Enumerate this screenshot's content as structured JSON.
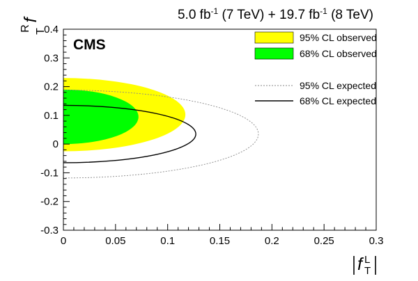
{
  "chart_data": {
    "type": "contour",
    "header": {
      "lumi1": "5.0 fb",
      "sup1": "-1",
      "energy1": " (7 TeV) + 19.7 fb",
      "sup2": "-1",
      "energy2": " (8 TeV)"
    },
    "experiment_label": "CMS",
    "xlabel": {
      "base": "f",
      "sup": "L",
      "sub": "T"
    },
    "ylabel": {
      "base": "f",
      "sup": "R",
      "sub": "T"
    },
    "xlim": [
      0,
      0.3
    ],
    "ylim": [
      -0.3,
      0.4
    ],
    "x_ticks": [
      {
        "value": 0,
        "label": "0"
      },
      {
        "value": 0.05,
        "label": "0.05"
      },
      {
        "value": 0.1,
        "label": "0.1"
      },
      {
        "value": 0.15,
        "label": "0.15"
      },
      {
        "value": 0.2,
        "label": "0.2"
      },
      {
        "value": 0.25,
        "label": "0.25"
      },
      {
        "value": 0.3,
        "label": "0.3"
      }
    ],
    "y_ticks": [
      {
        "value": -0.3,
        "label": "-0.3"
      },
      {
        "value": -0.2,
        "label": "-0.2"
      },
      {
        "value": -0.1,
        "label": "-0.1"
      },
      {
        "value": 0,
        "label": "0"
      },
      {
        "value": 0.1,
        "label": "0.1"
      },
      {
        "value": 0.2,
        "label": "0.2"
      },
      {
        "value": 0.3,
        "label": "0.3"
      },
      {
        "value": 0.4,
        "label": "0.4"
      }
    ],
    "legend_position": "top-right",
    "series": [
      {
        "name": "95% CL observed",
        "style": "filled",
        "color": "#ffff00",
        "center": [
          0,
          0.09
        ],
        "x_max": 0.117,
        "y_range": [
          -0.025,
          0.23
        ]
      },
      {
        "name": "68% CL observed",
        "style": "filled",
        "color": "#00ff00",
        "center": [
          0,
          0.095
        ],
        "x_max": 0.072,
        "y_range": [
          0.0,
          0.19
        ]
      },
      {
        "name": "95% CL expected",
        "style": "dotted",
        "color": "#888888",
        "center": [
          0,
          0.035
        ],
        "x_max": 0.187,
        "y_range": [
          -0.118,
          0.188
        ]
      },
      {
        "name": "68% CL expected",
        "style": "solid",
        "color": "#000000",
        "center": [
          0,
          0.035
        ],
        "x_max": 0.127,
        "y_range": [
          -0.065,
          0.135
        ]
      }
    ]
  }
}
